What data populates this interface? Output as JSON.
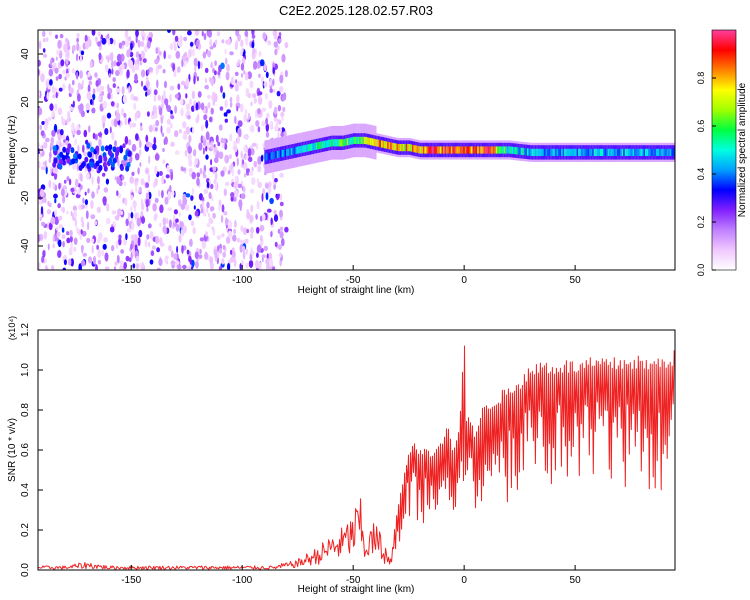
{
  "figure_title": "C2E2.2025.128.02.57.R03",
  "colors": {
    "snr_line": "#ee2222",
    "axis": "#000000",
    "background": "#ffffff"
  },
  "chart_data": [
    {
      "type": "heatmap",
      "title": "C2E2.2025.128.02.57.R03",
      "xlabel": "Height of straight line (km)",
      "ylabel": "Frequency (Hz)",
      "xlim": [
        -192,
        95
      ],
      "ylim": [
        -50,
        50
      ],
      "xticks": [
        -150,
        -100,
        -50,
        0,
        50
      ],
      "yticks": [
        -40,
        -20,
        0,
        20,
        40
      ],
      "colorbar": {
        "label": "Normalized spectral amplitude",
        "range": [
          0.0,
          1.0
        ],
        "ticks": [
          "0.0",
          "0.2",
          "0.4",
          "0.6",
          "0.8"
        ],
        "colormap": [
          "#ffffff",
          "#f0c8ff",
          "#c080ff",
          "#8020ff",
          "#0000ff",
          "#00a0ff",
          "#00ffe0",
          "#00ff40",
          "#a0ff00",
          "#ffff00",
          "#ff8000",
          "#ff0000",
          "#ff40a0"
        ]
      },
      "ridge": {
        "x": [
          -90,
          -85,
          -80,
          -75,
          -70,
          -65,
          -60,
          -55,
          -50,
          -45,
          -40,
          -35,
          -30,
          -25,
          -20,
          -15,
          -10,
          -5,
          0,
          5,
          10,
          20,
          30,
          40,
          50,
          60,
          70,
          80,
          90
        ],
        "freq": [
          -3,
          -2,
          -1,
          0,
          1,
          2,
          3,
          3,
          4,
          4,
          3,
          2,
          1,
          1,
          0,
          0,
          0,
          0,
          0,
          0,
          0,
          0,
          -1,
          -1,
          -1,
          -1,
          -1,
          -1,
          -1
        ],
        "amplitude": [
          0.35,
          0.4,
          0.4,
          0.45,
          0.5,
          0.55,
          0.5,
          0.6,
          0.55,
          0.7,
          0.85,
          0.75,
          0.8,
          0.8,
          0.75,
          0.9,
          0.85,
          0.9,
          0.95,
          0.85,
          0.9,
          0.5,
          0.45,
          0.45,
          0.45,
          0.45,
          0.45,
          0.45,
          0.4
        ]
      },
      "noise_region_x": [
        -192,
        -80
      ],
      "noise_cluster_x": [
        -185,
        -150
      ]
    },
    {
      "type": "line",
      "xlabel": "Height of straight line (km)",
      "ylabel": "SNR (10 * v/v)",
      "y_multiplier": "(x10⁴)",
      "xlim": [
        -192,
        95
      ],
      "ylim": [
        0.0,
        1.2
      ],
      "xticks": [
        -150,
        -100,
        -50,
        0,
        50
      ],
      "yticks": [
        0.0,
        0.2,
        0.4,
        0.6,
        0.8,
        1.0,
        1.2
      ],
      "series": [
        {
          "x": [
            -192,
            -180,
            -170,
            -160,
            -150,
            -140,
            -130,
            -120,
            -110,
            -100,
            -90,
            -85,
            -80,
            -75,
            -70,
            -65,
            -60,
            -55,
            -50,
            -47,
            -45,
            -40,
            -36,
            -33,
            -30,
            -28,
            -25,
            -22,
            -20,
            -17,
            -15,
            -12,
            -10,
            -7,
            -5,
            -2,
            0,
            1,
            3,
            5,
            8,
            10,
            15,
            20,
            25,
            30,
            35,
            40,
            45,
            50,
            55,
            60,
            65,
            70,
            75,
            80,
            85,
            90,
            95
          ],
          "values": [
            0.01,
            0.01,
            0.02,
            0.01,
            0.01,
            0.01,
            0.01,
            0.01,
            0.01,
            0.01,
            0.01,
            0.01,
            0.02,
            0.03,
            0.05,
            0.07,
            0.1,
            0.12,
            0.16,
            0.22,
            0.1,
            0.14,
            0.08,
            0.05,
            0.3,
            0.4,
            0.55,
            0.62,
            0.55,
            0.6,
            0.55,
            0.6,
            0.62,
            0.68,
            0.58,
            0.65,
            1.18,
            0.7,
            0.72,
            0.65,
            0.75,
            0.78,
            0.82,
            0.85,
            0.9,
            0.95,
            0.98,
            0.97,
            0.98,
            0.97,
            0.98,
            0.99,
            0.98,
            0.99,
            1.0,
            0.99,
            0.98,
            1.0,
            1.02
          ]
        }
      ]
    }
  ]
}
